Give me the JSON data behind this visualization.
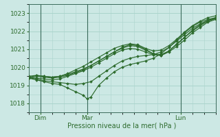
{
  "title": "",
  "xlabel": "Pression niveau de la mer( hPa )",
  "ylabel": "",
  "background_color": "#cce8e4",
  "grid_color": "#aad4cc",
  "line_color": "#2d6b2d",
  "ylim": [
    1017.5,
    1023.5
  ],
  "xlim": [
    0,
    48
  ],
  "xtick_positions": [
    3,
    15,
    39
  ],
  "xtick_labels": [
    "Dim",
    "Mar",
    "Lun"
  ],
  "ytick_positions": [
    1018,
    1019,
    1020,
    1021,
    1022,
    1023
  ],
  "vline_positions": [
    3,
    15,
    39
  ],
  "series": [
    {
      "points": [
        [
          0,
          1019.4
        ],
        [
          2,
          1019.55
        ],
        [
          4,
          1019.5
        ],
        [
          6,
          1019.45
        ],
        [
          8,
          1019.5
        ],
        [
          10,
          1019.6
        ],
        [
          12,
          1019.75
        ],
        [
          14,
          1019.9
        ],
        [
          16,
          1020.1
        ],
        [
          18,
          1020.35
        ],
        [
          20,
          1020.6
        ],
        [
          22,
          1020.85
        ],
        [
          24,
          1021.1
        ],
        [
          26,
          1021.25
        ],
        [
          28,
          1021.2
        ],
        [
          30,
          1021.0
        ],
        [
          32,
          1020.75
        ],
        [
          34,
          1020.65
        ],
        [
          36,
          1020.9
        ],
        [
          38,
          1021.3
        ],
        [
          40,
          1021.65
        ],
        [
          42,
          1022.0
        ],
        [
          44,
          1022.3
        ],
        [
          46,
          1022.55
        ],
        [
          48,
          1022.7
        ]
      ],
      "dip": false
    },
    {
      "points": [
        [
          0,
          1019.4
        ],
        [
          2,
          1019.3
        ],
        [
          4,
          1019.2
        ],
        [
          6,
          1019.1
        ],
        [
          8,
          1019.05
        ],
        [
          10,
          1018.85
        ],
        [
          12,
          1018.65
        ],
        [
          14,
          1018.45
        ],
        [
          15,
          1018.25
        ],
        [
          16,
          1018.35
        ],
        [
          18,
          1019.0
        ],
        [
          20,
          1019.4
        ],
        [
          22,
          1019.75
        ],
        [
          24,
          1020.0
        ],
        [
          26,
          1020.15
        ],
        [
          28,
          1020.25
        ],
        [
          30,
          1020.35
        ],
        [
          32,
          1020.5
        ],
        [
          34,
          1020.75
        ],
        [
          36,
          1021.1
        ],
        [
          38,
          1021.5
        ],
        [
          40,
          1021.9
        ],
        [
          42,
          1022.25
        ],
        [
          44,
          1022.5
        ],
        [
          46,
          1022.65
        ],
        [
          48,
          1022.75
        ]
      ],
      "dip": true
    },
    {
      "points": [
        [
          0,
          1019.4
        ],
        [
          2,
          1019.35
        ],
        [
          4,
          1019.25
        ],
        [
          6,
          1019.2
        ],
        [
          8,
          1019.15
        ],
        [
          10,
          1019.1
        ],
        [
          12,
          1019.05
        ],
        [
          14,
          1019.1
        ],
        [
          16,
          1019.2
        ],
        [
          18,
          1019.5
        ],
        [
          20,
          1019.8
        ],
        [
          22,
          1020.1
        ],
        [
          24,
          1020.35
        ],
        [
          26,
          1020.5
        ],
        [
          28,
          1020.6
        ],
        [
          30,
          1020.65
        ],
        [
          32,
          1020.7
        ],
        [
          34,
          1020.85
        ],
        [
          36,
          1021.1
        ],
        [
          38,
          1021.45
        ],
        [
          40,
          1021.8
        ],
        [
          42,
          1022.15
        ],
        [
          44,
          1022.4
        ],
        [
          46,
          1022.6
        ],
        [
          48,
          1022.7
        ]
      ],
      "dip": false
    },
    {
      "points": [
        [
          0,
          1019.45
        ],
        [
          2,
          1019.5
        ],
        [
          4,
          1019.45
        ],
        [
          6,
          1019.4
        ],
        [
          8,
          1019.45
        ],
        [
          10,
          1019.55
        ],
        [
          12,
          1019.7
        ],
        [
          14,
          1019.85
        ],
        [
          16,
          1020.1
        ],
        [
          18,
          1020.35
        ],
        [
          20,
          1020.6
        ],
        [
          22,
          1020.85
        ],
        [
          24,
          1021.05
        ],
        [
          26,
          1021.2
        ],
        [
          28,
          1021.15
        ],
        [
          30,
          1020.95
        ],
        [
          32,
          1020.75
        ],
        [
          34,
          1020.7
        ],
        [
          36,
          1020.9
        ],
        [
          38,
          1021.25
        ],
        [
          40,
          1021.65
        ],
        [
          42,
          1022.05
        ],
        [
          44,
          1022.35
        ],
        [
          46,
          1022.6
        ],
        [
          48,
          1022.75
        ]
      ],
      "dip": false
    },
    {
      "points": [
        [
          0,
          1019.45
        ],
        [
          2,
          1019.4
        ],
        [
          4,
          1019.35
        ],
        [
          6,
          1019.3
        ],
        [
          8,
          1019.35
        ],
        [
          10,
          1019.5
        ],
        [
          12,
          1019.65
        ],
        [
          14,
          1019.8
        ],
        [
          16,
          1020.0
        ],
        [
          18,
          1020.25
        ],
        [
          20,
          1020.5
        ],
        [
          22,
          1020.75
        ],
        [
          24,
          1020.95
        ],
        [
          26,
          1021.05
        ],
        [
          28,
          1021.0
        ],
        [
          30,
          1020.85
        ],
        [
          32,
          1020.7
        ],
        [
          34,
          1020.65
        ],
        [
          36,
          1020.85
        ],
        [
          38,
          1021.15
        ],
        [
          40,
          1021.5
        ],
        [
          42,
          1021.9
        ],
        [
          44,
          1022.2
        ],
        [
          46,
          1022.5
        ],
        [
          48,
          1022.65
        ]
      ],
      "dip": false
    },
    {
      "points": [
        [
          0,
          1019.5
        ],
        [
          2,
          1019.55
        ],
        [
          4,
          1019.5
        ],
        [
          6,
          1019.45
        ],
        [
          8,
          1019.5
        ],
        [
          10,
          1019.65
        ],
        [
          12,
          1019.85
        ],
        [
          14,
          1020.05
        ],
        [
          16,
          1020.3
        ],
        [
          18,
          1020.55
        ],
        [
          20,
          1020.8
        ],
        [
          22,
          1021.05
        ],
        [
          24,
          1021.2
        ],
        [
          26,
          1021.3
        ],
        [
          28,
          1021.25
        ],
        [
          30,
          1021.05
        ],
        [
          32,
          1020.9
        ],
        [
          34,
          1020.95
        ],
        [
          36,
          1021.2
        ],
        [
          38,
          1021.55
        ],
        [
          40,
          1021.95
        ],
        [
          42,
          1022.3
        ],
        [
          44,
          1022.55
        ],
        [
          46,
          1022.75
        ],
        [
          48,
          1022.85
        ]
      ],
      "dip": false
    }
  ]
}
